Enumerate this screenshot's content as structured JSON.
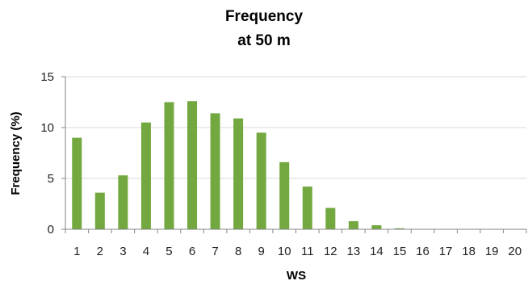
{
  "colors": {
    "bar": "#72a83f",
    "grid": "#d9d9d9",
    "axis": "#868686",
    "text": "#000000"
  },
  "chart_data": {
    "type": "bar",
    "title": [
      "Frequency",
      "at 50 m"
    ],
    "xlabel": "WS",
    "ylabel": "Frequency (%)",
    "ylim": [
      0,
      15
    ],
    "yticks": [
      "0",
      "5",
      "10",
      "15"
    ],
    "grid": "horizontal",
    "legend": "none",
    "categories": [
      "1",
      "2",
      "3",
      "4",
      "5",
      "6",
      "7",
      "8",
      "9",
      "10",
      "11",
      "12",
      "13",
      "14",
      "15",
      "16",
      "17",
      "18",
      "19",
      "20"
    ],
    "values": [
      9.0,
      3.6,
      5.3,
      10.5,
      12.5,
      12.6,
      11.4,
      10.9,
      9.5,
      6.6,
      4.2,
      2.1,
      0.8,
      0.4,
      0.1,
      0.0,
      0.0,
      0.0,
      0.0,
      0.0
    ]
  }
}
